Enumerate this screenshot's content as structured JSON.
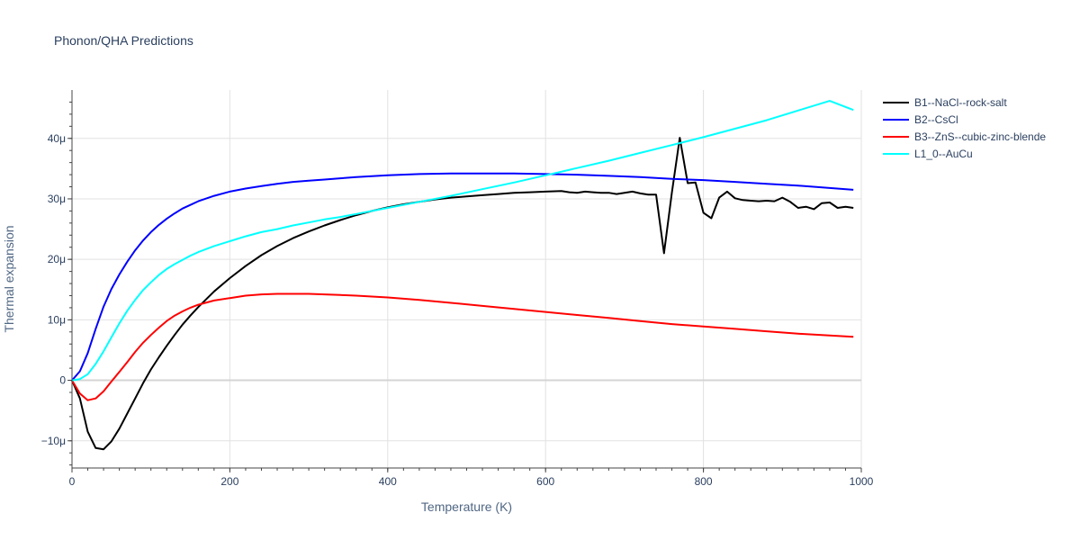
{
  "chart_data": {
    "type": "line",
    "title": "Phonon/QHA Predictions",
    "xlabel": "Temperature (K)",
    "ylabel": "Thermal expansion",
    "xlim": [
      0,
      1000
    ],
    "ylim": [
      -1.45e-05,
      4.8e-05
    ],
    "x_ticks": [
      0,
      200,
      400,
      600,
      800,
      1000
    ],
    "x_tick_labels": [
      "0",
      "200",
      "400",
      "600",
      "800",
      "1000"
    ],
    "y_ticks": [
      -1e-05,
      0,
      1e-05,
      2e-05,
      3e-05,
      4e-05
    ],
    "y_tick_labels": [
      "−10μ",
      "0",
      "10μ",
      "20μ",
      "30μ",
      "40μ"
    ],
    "grid": true,
    "legend_position": "right",
    "series": [
      {
        "name": "B1--NaCl--rock-salt",
        "color": "#000000",
        "x": [
          0,
          10,
          20,
          30,
          40,
          50,
          60,
          70,
          80,
          90,
          100,
          110,
          120,
          130,
          140,
          150,
          160,
          180,
          200,
          220,
          240,
          260,
          280,
          300,
          320,
          340,
          360,
          380,
          400,
          420,
          440,
          460,
          480,
          500,
          520,
          540,
          560,
          580,
          600,
          620,
          630,
          640,
          650,
          660,
          670,
          680,
          690,
          700,
          710,
          720,
          730,
          740,
          750,
          760,
          770,
          780,
          790,
          800,
          810,
          820,
          830,
          840,
          850,
          860,
          870,
          880,
          890,
          900,
          910,
          920,
          930,
          940,
          950,
          960,
          970,
          980,
          990
        ],
        "values": [
          0,
          -3e-06,
          -8.5e-06,
          -1.12e-05,
          -1.14e-05,
          -1.01e-05,
          -8e-06,
          -5.5e-06,
          -3e-06,
          -5e-07,
          1.8e-06,
          3.8e-06,
          5.7e-06,
          7.5e-06,
          9.2e-06,
          1.07e-05,
          1.21e-05,
          1.47e-05,
          1.69e-05,
          1.89e-05,
          2.07e-05,
          2.22e-05,
          2.35e-05,
          2.46e-05,
          2.56e-05,
          2.65e-05,
          2.73e-05,
          2.8e-05,
          2.86e-05,
          2.91e-05,
          2.95e-05,
          2.99e-05,
          3.02e-05,
          3.04e-05,
          3.06e-05,
          3.08e-05,
          3.1e-05,
          3.11e-05,
          3.12e-05,
          3.13e-05,
          3.11e-05,
          3.1e-05,
          3.12e-05,
          3.11e-05,
          3.1e-05,
          3.1e-05,
          3.08e-05,
          3.1e-05,
          3.12e-05,
          3.09e-05,
          3.07e-05,
          3.07e-05,
          2.1e-05,
          3.1e-05,
          4.01e-05,
          3.26e-05,
          3.27e-05,
          2.77e-05,
          2.68e-05,
          3.02e-05,
          3.12e-05,
          3.01e-05,
          2.98e-05,
          2.97e-05,
          2.96e-05,
          2.97e-05,
          2.96e-05,
          3.02e-05,
          2.95e-05,
          2.85e-05,
          2.87e-05,
          2.83e-05,
          2.93e-05,
          2.94e-05,
          2.85e-05,
          2.87e-05,
          2.85e-05
        ]
      },
      {
        "name": "B2--CsCl",
        "color": "#0000ff",
        "x": [
          0,
          10,
          20,
          30,
          40,
          50,
          60,
          70,
          80,
          90,
          100,
          110,
          120,
          130,
          140,
          150,
          160,
          180,
          200,
          220,
          240,
          260,
          280,
          300,
          320,
          340,
          360,
          400,
          440,
          480,
          520,
          560,
          600,
          640,
          680,
          720,
          760,
          800,
          840,
          880,
          920,
          960,
          990
        ],
        "values": [
          0,
          1.5e-06,
          4.5e-06,
          8.5e-06,
          1.22e-05,
          1.51e-05,
          1.75e-05,
          1.96e-05,
          2.15e-05,
          2.31e-05,
          2.45e-05,
          2.57e-05,
          2.67e-05,
          2.76e-05,
          2.84e-05,
          2.9e-05,
          2.96e-05,
          3.05e-05,
          3.12e-05,
          3.17e-05,
          3.21e-05,
          3.25e-05,
          3.28e-05,
          3.3e-05,
          3.32e-05,
          3.34e-05,
          3.36e-05,
          3.39e-05,
          3.41e-05,
          3.42e-05,
          3.42e-05,
          3.42e-05,
          3.41e-05,
          3.4e-05,
          3.38e-05,
          3.36e-05,
          3.33e-05,
          3.31e-05,
          3.28e-05,
          3.25e-05,
          3.22e-05,
          3.18e-05,
          3.15e-05
        ]
      },
      {
        "name": "B3--ZnS--cubic-zinc-blende",
        "color": "#ff0000",
        "x": [
          0,
          10,
          20,
          30,
          40,
          50,
          60,
          70,
          80,
          90,
          100,
          110,
          120,
          130,
          140,
          150,
          160,
          180,
          200,
          220,
          240,
          260,
          280,
          300,
          320,
          340,
          360,
          400,
          440,
          480,
          520,
          560,
          600,
          640,
          680,
          720,
          760,
          800,
          840,
          880,
          920,
          960,
          990
        ],
        "values": [
          0,
          -2.2e-06,
          -3.3e-06,
          -3e-06,
          -1.8e-06,
          -2e-07,
          1.4e-06,
          3e-06,
          4.7e-06,
          6.2e-06,
          7.5e-06,
          8.7e-06,
          9.8e-06,
          1.07e-05,
          1.14e-05,
          1.2e-05,
          1.25e-05,
          1.32e-05,
          1.36e-05,
          1.4e-05,
          1.42e-05,
          1.43e-05,
          1.43e-05,
          1.43e-05,
          1.42e-05,
          1.41e-05,
          1.4e-05,
          1.37e-05,
          1.33e-05,
          1.28e-05,
          1.23e-05,
          1.18e-05,
          1.13e-05,
          1.08e-05,
          1.03e-05,
          9.8e-06,
          9.3e-06,
          8.9e-06,
          8.5e-06,
          8.1e-06,
          7.7e-06,
          7.4e-06,
          7.2e-06
        ]
      },
      {
        "name": "L1_0--AuCu",
        "color": "#00ffff",
        "x": [
          0,
          10,
          20,
          30,
          40,
          50,
          60,
          70,
          80,
          90,
          100,
          110,
          120,
          130,
          140,
          150,
          160,
          180,
          200,
          220,
          240,
          260,
          280,
          300,
          320,
          340,
          360,
          400,
          440,
          480,
          520,
          560,
          600,
          640,
          680,
          720,
          760,
          800,
          840,
          880,
          920,
          960,
          990
        ],
        "values": [
          0,
          2e-07,
          1e-06,
          2.7e-06,
          4.8e-06,
          7.1e-06,
          9.4e-06,
          1.15e-05,
          1.33e-05,
          1.49e-05,
          1.62e-05,
          1.74e-05,
          1.84e-05,
          1.92e-05,
          1.99e-05,
          2.06e-05,
          2.12e-05,
          2.22e-05,
          2.3e-05,
          2.38e-05,
          2.45e-05,
          2.5e-05,
          2.56e-05,
          2.61e-05,
          2.66e-05,
          2.7e-05,
          2.75e-05,
          2.85e-05,
          2.95e-05,
          3.05e-05,
          3.16e-05,
          3.27e-05,
          3.39e-05,
          3.51e-05,
          3.63e-05,
          3.76e-05,
          3.89e-05,
          4.02e-05,
          4.16e-05,
          4.3e-05,
          4.46e-05,
          4.62e-05,
          4.47e-05
        ]
      }
    ]
  }
}
